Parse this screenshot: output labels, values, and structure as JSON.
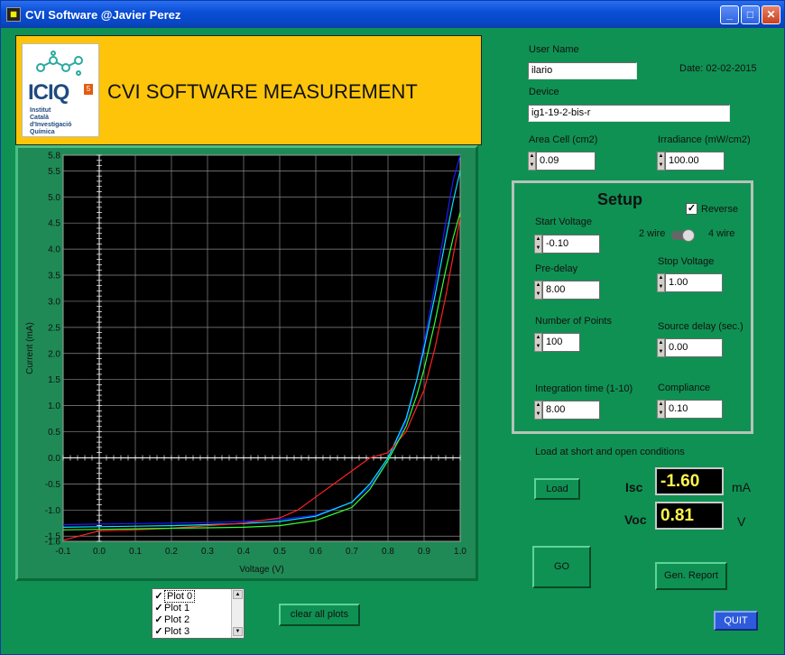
{
  "window": {
    "title": "CVI Software @Javier Perez"
  },
  "header": {
    "title": "CVI SOFTWARE MEASUREMENT",
    "logo_text": "ICIQ",
    "logo_badge": "5",
    "logo_sub": [
      "Institut",
      "Català",
      "d'Investigació",
      "Química"
    ]
  },
  "form": {
    "user_name_label": "User Name",
    "user_name_value": "ilario",
    "date_text": "Date: 02-02-2015",
    "device_label": "Device",
    "device_value": "ig1-19-2-bis-r",
    "area_label": "Area Cell (cm2)",
    "area_value": "0.09",
    "irradiance_label": "Irradiance (mW/cm2)",
    "irradiance_value": "100.00"
  },
  "setup": {
    "title": "Setup",
    "reverse_label": "Reverse",
    "reverse_checked": true,
    "wire_left": "2 wire",
    "wire_right": "4 wire",
    "start_voltage_label": "Start Voltage",
    "start_voltage_value": "-0.10",
    "pre_delay_label": "Pre-delay",
    "pre_delay_value": "8.00",
    "stop_voltage_label": "Stop Voltage",
    "stop_voltage_value": "1.00",
    "points_label": "Number of Points",
    "points_value": "100",
    "source_delay_label": "Source delay (sec.)",
    "source_delay_value": "0.00",
    "integration_label": "Integration time (1-10)",
    "integration_value": "8.00",
    "compliance_label": "Compliance",
    "compliance_value": "0.10"
  },
  "results": {
    "load_caption": "Load at short and open conditions",
    "load_button": "Load",
    "isc_label": "Isc",
    "isc_value": "-1.60",
    "isc_unit": "mA",
    "voc_label": "Voc",
    "voc_value": "0.81",
    "voc_unit": "V"
  },
  "buttons": {
    "go": "GO",
    "gen_report": "Gen. Report",
    "quit": "QUIT",
    "clear_plots": "clear all plots"
  },
  "plot_list": [
    {
      "label": "Plot 0",
      "checked": true
    },
    {
      "label": "Plot 1",
      "checked": true
    },
    {
      "label": "Plot 2",
      "checked": true
    },
    {
      "label": "Plot 3",
      "checked": true
    }
  ],
  "chart_data": {
    "type": "line",
    "xlabel": "Voltage (V)",
    "ylabel": "Current (mA)",
    "xlim": [
      -0.1,
      1.0
    ],
    "ylim": [
      -1.6,
      5.8
    ],
    "xticks": [
      "-0.1",
      "0.0",
      "0.1",
      "0.2",
      "0.3",
      "0.4",
      "0.5",
      "0.6",
      "0.7",
      "0.8",
      "0.9",
      "1.0"
    ],
    "yticks": [
      "-1.6",
      "-1.5",
      "-1.0",
      "-0.5",
      "0.0",
      "0.5",
      "1.0",
      "1.5",
      "2.0",
      "2.5",
      "3.0",
      "3.5",
      "4.0",
      "4.5",
      "5.0",
      "5.5",
      "5.8"
    ],
    "grid": true,
    "series": [
      {
        "color": "#1a1aff",
        "x": [
          -0.1,
          0.0,
          0.1,
          0.2,
          0.3,
          0.4,
          0.5,
          0.6,
          0.7,
          0.75,
          0.8,
          0.85,
          0.88,
          0.9,
          0.93,
          0.96,
          0.98,
          1.0
        ],
        "y": [
          -1.28,
          -1.27,
          -1.26,
          -1.25,
          -1.24,
          -1.22,
          -1.18,
          -1.1,
          -0.85,
          -0.55,
          -0.05,
          0.7,
          1.5,
          2.2,
          3.3,
          4.5,
          5.3,
          5.8
        ]
      },
      {
        "color": "#00e5ff",
        "x": [
          -0.1,
          0.0,
          0.1,
          0.2,
          0.3,
          0.4,
          0.5,
          0.6,
          0.7,
          0.75,
          0.8,
          0.85,
          0.88,
          0.9,
          0.93,
          0.96,
          0.98,
          1.0
        ],
        "y": [
          -1.33,
          -1.32,
          -1.31,
          -1.3,
          -1.28,
          -1.26,
          -1.22,
          -1.12,
          -0.85,
          -0.5,
          0.0,
          0.75,
          1.5,
          2.1,
          3.1,
          4.2,
          4.9,
          5.5
        ]
      },
      {
        "color": "#ff2020",
        "x": [
          -0.1,
          0.0,
          0.1,
          0.2,
          0.3,
          0.4,
          0.5,
          0.55,
          0.6,
          0.65,
          0.7,
          0.75,
          0.8,
          0.85,
          0.9,
          0.93,
          0.96,
          1.0
        ],
        "y": [
          -1.58,
          -1.4,
          -1.38,
          -1.35,
          -1.3,
          -1.25,
          -1.15,
          -1.0,
          -0.75,
          -0.5,
          -0.25,
          0.0,
          0.1,
          0.5,
          1.3,
          2.1,
          3.1,
          4.6
        ]
      },
      {
        "color": "#33ff33",
        "x": [
          -0.1,
          0.0,
          0.1,
          0.2,
          0.3,
          0.4,
          0.5,
          0.6,
          0.7,
          0.75,
          0.8,
          0.85,
          0.88,
          0.9,
          0.93,
          0.96,
          0.98,
          1.0
        ],
        "y": [
          -1.38,
          -1.37,
          -1.36,
          -1.35,
          -1.34,
          -1.33,
          -1.3,
          -1.2,
          -0.95,
          -0.6,
          -0.05,
          0.6,
          1.2,
          1.7,
          2.6,
          3.6,
          4.2,
          4.7
        ]
      }
    ]
  }
}
